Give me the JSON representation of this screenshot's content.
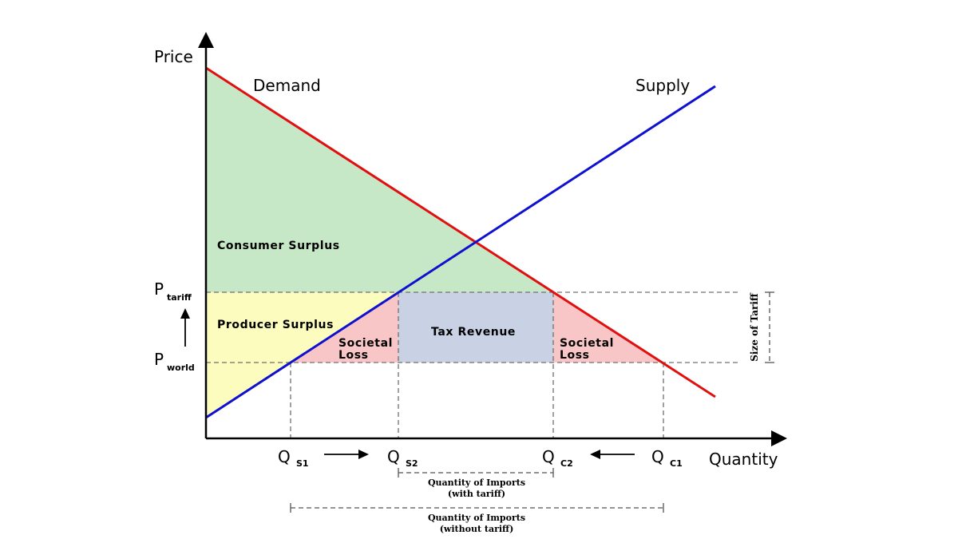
{
  "axes": {
    "y_label": "Price",
    "x_label": "Quantity"
  },
  "curves": {
    "demand": {
      "label": "Demand",
      "color": "#e01010"
    },
    "supply": {
      "label": "Supply",
      "color": "#1010d0"
    }
  },
  "prices": {
    "tariff": {
      "main": "P",
      "sub": "tariff"
    },
    "world": {
      "main": "P",
      "sub": "world"
    }
  },
  "quantities": {
    "qs1": {
      "main": "Q",
      "sub": "S1"
    },
    "qs2": {
      "main": "Q",
      "sub": "S2"
    },
    "qc2": {
      "main": "Q",
      "sub": "C2"
    },
    "qc1": {
      "main": "Q",
      "sub": "C1"
    }
  },
  "regions": {
    "consumer_surplus": {
      "label": "Consumer Surplus",
      "color": "#c6e8c6"
    },
    "producer_surplus": {
      "label": "Producer Surplus",
      "color": "#fcfcbe"
    },
    "societal_loss_left": {
      "line1": "Societal",
      "line2": "Loss",
      "color": "#f8c6c6"
    },
    "tax_revenue": {
      "label": "Tax Revenue",
      "color": "#c8d2e4"
    },
    "societal_loss_right": {
      "line1": "Societal",
      "line2": "Loss",
      "color": "#f8c6c6"
    }
  },
  "brackets": {
    "size_of_tariff": "Size of Tariff",
    "imports_with_tariff": {
      "line1": "Quantity of Imports",
      "line2": "(with tariff)"
    },
    "imports_without_tariff": {
      "line1": "Quantity of Imports",
      "line2": "(without tariff)"
    }
  }
}
